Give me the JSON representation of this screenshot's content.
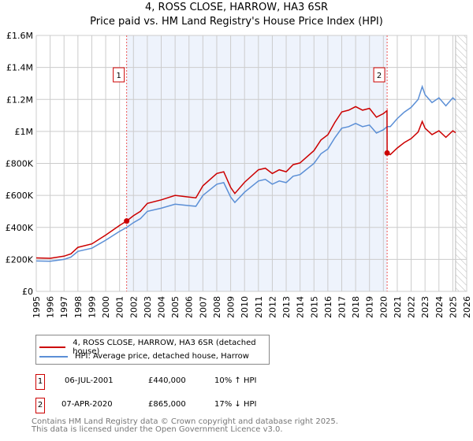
{
  "title": "4, ROSS CLOSE, HARROW, HA3 6SR",
  "subtitle": "Price paid vs. HM Land Registry's House Price Index (HPI)",
  "chart_data": {
    "type": "line",
    "ylim": [
      0,
      1600000
    ],
    "xlim": [
      1995,
      2026
    ],
    "y_ticks": [
      {
        "v": 0,
        "label": "£0"
      },
      {
        "v": 200000,
        "label": "£200K"
      },
      {
        "v": 400000,
        "label": "£400K"
      },
      {
        "v": 600000,
        "label": "£600K"
      },
      {
        "v": 800000,
        "label": "£800K"
      },
      {
        "v": 1000000,
        "label": "£1M"
      },
      {
        "v": 1200000,
        "label": "£1.2M"
      },
      {
        "v": 1400000,
        "label": "£1.4M"
      },
      {
        "v": 1600000,
        "label": "£1.6M"
      }
    ],
    "x_ticks": [
      "1995",
      "1996",
      "1997",
      "1998",
      "1999",
      "2000",
      "2001",
      "2002",
      "2003",
      "2004",
      "2005",
      "2006",
      "2007",
      "2008",
      "2009",
      "2010",
      "2011",
      "2012",
      "2013",
      "2014",
      "2015",
      "2016",
      "2017",
      "2018",
      "2019",
      "2020",
      "2021",
      "2022",
      "2023",
      "2024",
      "2025",
      "2026"
    ],
    "grid": true,
    "shaded_period": [
      2001.51,
      2020.27
    ],
    "forecast_hatch_from": 2025.2,
    "series": [
      {
        "name": "4, ROSS CLOSE, HARROW, HA3 6SR (detached house)",
        "color": "#cc0000",
        "x": [
          1995,
          1996,
          1997,
          1997.5,
          1998,
          1999,
          2000,
          2001,
          2001.51,
          2002,
          2002.5,
          2003,
          2004,
          2005,
          2006,
          2006.5,
          2007,
          2008,
          2008.5,
          2009,
          2009.3,
          2010,
          2011,
          2011.5,
          2012,
          2012.5,
          2013,
          2013.5,
          2014,
          2015,
          2015.5,
          2016,
          2016.5,
          2017,
          2017.5,
          2018,
          2018.5,
          2019,
          2019.5,
          2020,
          2020.26,
          2020.27,
          2020.5,
          2021,
          2021.5,
          2022,
          2022.5,
          2022.8,
          2023,
          2023.5,
          2024,
          2024.5,
          2025,
          2025.2
        ],
        "y": [
          209000,
          207000,
          220000,
          235000,
          275000,
          297000,
          352000,
          412000,
          440000,
          473000,
          500000,
          550000,
          572000,
          600000,
          590000,
          585000,
          660000,
          737000,
          748000,
          650000,
          612000,
          682000,
          760000,
          770000,
          737000,
          760000,
          748000,
          792000,
          803000,
          880000,
          946000,
          979000,
          1056000,
          1122000,
          1133000,
          1155000,
          1133000,
          1144000,
          1089000,
          1111000,
          1130000,
          865000,
          855000,
          896000,
          930000,
          955000,
          996000,
          1062000,
          1020000,
          980000,
          1004000,
          963000,
          1004000,
          992000
        ]
      },
      {
        "name": "HPI: Average price, detached house, Harrow",
        "color": "#5b8fd6",
        "x": [
          1995,
          1996,
          1997,
          1997.5,
          1998,
          1999,
          2000,
          2001,
          2001.51,
          2002,
          2002.5,
          2003,
          2004,
          2005,
          2006,
          2006.5,
          2007,
          2008,
          2008.5,
          2009,
          2009.3,
          2010,
          2011,
          2011.5,
          2012,
          2012.5,
          2013,
          2013.5,
          2014,
          2015,
          2015.5,
          2016,
          2016.5,
          2017,
          2017.5,
          2018,
          2018.5,
          2019,
          2019.5,
          2020,
          2020.27,
          2020.5,
          2021,
          2021.5,
          2022,
          2022.5,
          2022.8,
          2023,
          2023.5,
          2024,
          2024.5,
          2025,
          2025.2
        ],
        "y": [
          190000,
          188000,
          200000,
          214000,
          250000,
          270000,
          320000,
          375000,
          400000,
          430000,
          455000,
          500000,
          520000,
          545000,
          536000,
          532000,
          600000,
          670000,
          680000,
          590000,
          556000,
          620000,
          690000,
          700000,
          670000,
          690000,
          680000,
          720000,
          730000,
          800000,
          860000,
          890000,
          960000,
          1020000,
          1030000,
          1050000,
          1030000,
          1040000,
          990000,
          1010000,
          1030000,
          1030000,
          1080000,
          1120000,
          1150000,
          1200000,
          1280000,
          1230000,
          1180000,
          1210000,
          1160000,
          1210000,
          1195000
        ]
      }
    ],
    "markers": [
      {
        "label": "1",
        "x": 2001.51,
        "y": 440000
      },
      {
        "label": "2",
        "x": 2020.27,
        "y": 865000
      }
    ]
  },
  "legend": {
    "items": [
      "4, ROSS CLOSE, HARROW, HA3 6SR (detached house)",
      "HPI: Average price, detached house, Harrow"
    ]
  },
  "transactions": [
    {
      "num": "1",
      "date": "06-JUL-2001",
      "price": "£440,000",
      "hpi": "10% ↑ HPI"
    },
    {
      "num": "2",
      "date": "07-APR-2020",
      "price": "£865,000",
      "hpi": "17% ↓ HPI"
    }
  ],
  "footer": {
    "line1": "Contains HM Land Registry data © Crown copyright and database right 2025.",
    "line2": "This data is licensed under the Open Government Licence v3.0."
  }
}
